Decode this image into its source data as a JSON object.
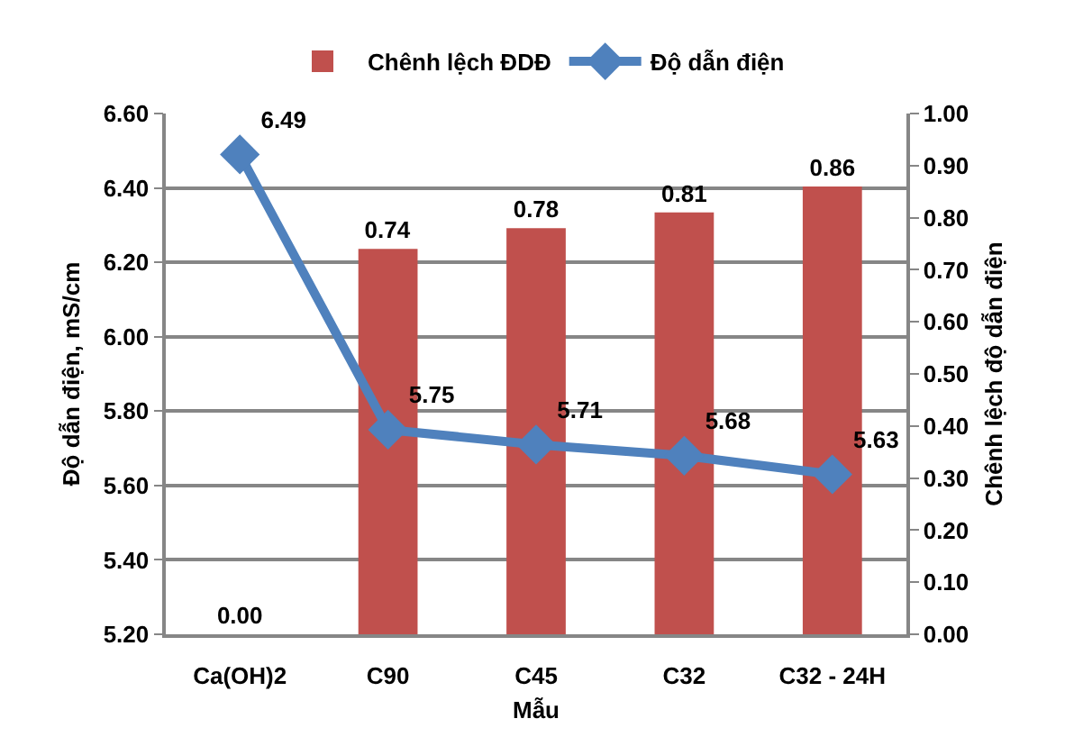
{
  "chart_data": {
    "type": "bar",
    "categories": [
      "Ca(OH)2",
      "C90",
      "C45",
      "C32",
      "C32 - 24H"
    ],
    "xlabel": "Mẫu",
    "ylabel": "Độ dẫn điện, mS/cm",
    "y2label": "Chênh lệch độ dẫn điện",
    "ylim": [
      5.2,
      6.6
    ],
    "yticks": [
      {
        "value": 5.2,
        "label": "5.20"
      },
      {
        "value": 5.4,
        "label": "5.40"
      },
      {
        "value": 5.6,
        "label": "5.60"
      },
      {
        "value": 5.8,
        "label": "5.80"
      },
      {
        "value": 6.0,
        "label": "6.00"
      },
      {
        "value": 6.2,
        "label": "6.20"
      },
      {
        "value": 6.4,
        "label": "6.40"
      },
      {
        "value": 6.6,
        "label": "6.60"
      }
    ],
    "y2lim": [
      0,
      1
    ],
    "y2ticks": [
      {
        "value": 0,
        "label": "0.00"
      },
      {
        "value": 0.1,
        "label": "0.10"
      },
      {
        "value": 0.2,
        "label": "0.20"
      },
      {
        "value": 0.3,
        "label": "0.30"
      },
      {
        "value": 0.4,
        "label": "0.40"
      },
      {
        "value": 0.5,
        "label": "0.50"
      },
      {
        "value": 0.6,
        "label": "0.60"
      },
      {
        "value": 0.7,
        "label": "0.70"
      },
      {
        "value": 0.8,
        "label": "0.80"
      },
      {
        "value": 0.9,
        "label": "0.90"
      },
      {
        "value": 1,
        "label": "1.00"
      }
    ],
    "grid": "y",
    "legend": "top",
    "marker": "diamond",
    "series": [
      {
        "name": "Chênh lệch ĐDĐ",
        "axis": "y2",
        "color": "#c0504d",
        "values": [
          0,
          0.74,
          0.78,
          0.81,
          0.86
        ],
        "value_labels": [
          "0.00",
          "0.74",
          "0.78",
          "0.81",
          "0.86"
        ]
      },
      {
        "name": "Độ dẫn điện",
        "type": "line",
        "color": "#4f81bd",
        "values": [
          6.49,
          5.75,
          5.71,
          5.68,
          5.63
        ],
        "value_labels": [
          "6.49",
          "5.75",
          "5.71",
          "5.68",
          "5.63"
        ]
      }
    ]
  }
}
